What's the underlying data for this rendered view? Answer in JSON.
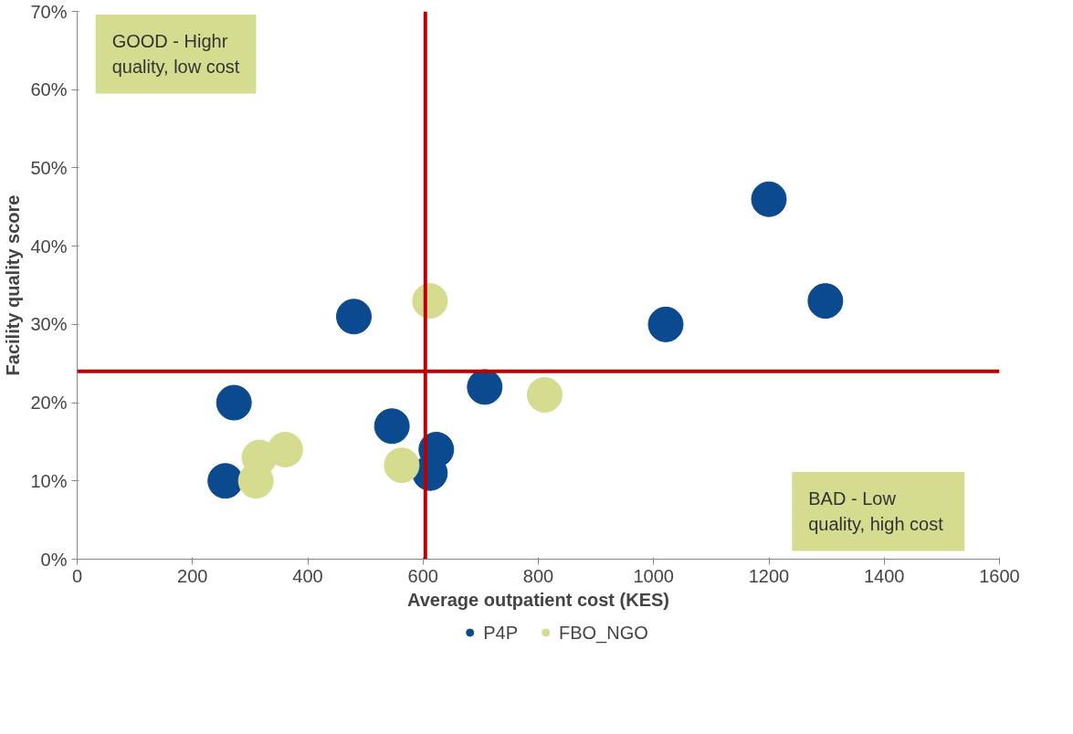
{
  "chart_data": {
    "type": "scatter",
    "xlabel": "Average outpatient cost (KES)",
    "ylabel": "Facility quality score",
    "xlim": [
      0,
      1600
    ],
    "xticks": [
      0,
      200,
      400,
      600,
      800,
      1000,
      1200,
      1400,
      1600
    ],
    "ylim": [
      0,
      70
    ],
    "yticks": [
      {
        "value": 0,
        "label": "0%"
      },
      {
        "value": 10,
        "label": "10%"
      },
      {
        "value": 20,
        "label": "20%"
      },
      {
        "value": 30,
        "label": "30%"
      },
      {
        "value": 40,
        "label": "40%"
      },
      {
        "value": 50,
        "label": "50%"
      },
      {
        "value": 60,
        "label": "60%"
      },
      {
        "value": 70,
        "label": "70%"
      }
    ],
    "series": [
      {
        "name": "P4P",
        "color": "#0b4a8f",
        "x": [
          1200,
          1298,
          1021,
          480,
          707,
          272,
          546,
          623,
          612,
          257
        ],
        "values": [
          46,
          33,
          30,
          31,
          22,
          20,
          17,
          14,
          11,
          10
        ]
      },
      {
        "name": "FBO_NGO",
        "color": "#d5dc8f",
        "x": [
          612,
          811,
          361,
          316,
          310,
          563
        ],
        "values": [
          33,
          21,
          14,
          13,
          10,
          12
        ]
      }
    ],
    "ref_lines": [
      {
        "axis": "x",
        "value": 604,
        "color": "#c00000"
      },
      {
        "axis": "y",
        "value": 24,
        "color": "#c00000"
      }
    ],
    "annotations": [
      "GOOD - Highr\nquality, low cost",
      "BAD - Low\nquality, high  cost"
    ],
    "marker": "circle",
    "grid": false,
    "legend": "bottom"
  }
}
